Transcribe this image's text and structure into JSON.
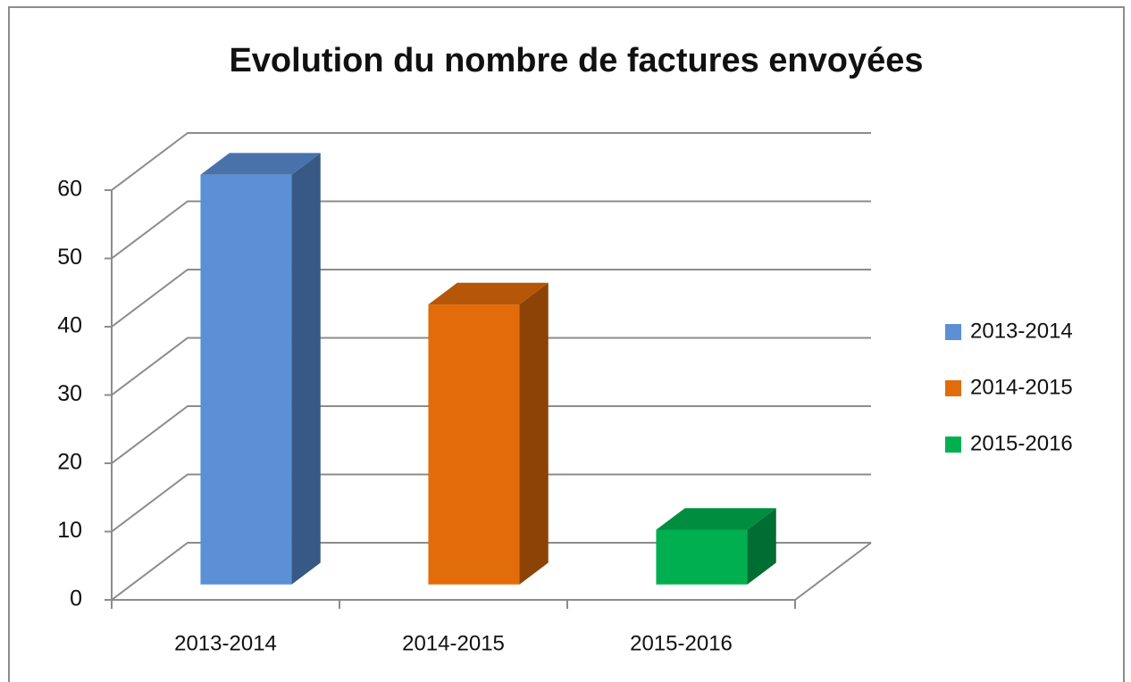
{
  "chart_data": {
    "type": "bar3d",
    "title": "Evolution du nombre de factures envoyées",
    "categories": [
      "2013-2014",
      "2014-2015",
      "2015-2016"
    ],
    "values": [
      60,
      41,
      8
    ],
    "colors": [
      "#5b8fd6",
      "#e36c0a",
      "#00b050"
    ],
    "ylim": [
      0,
      60
    ],
    "yticks": [
      0,
      10,
      20,
      30,
      40,
      50,
      60
    ],
    "grid": true,
    "legend": "right"
  }
}
